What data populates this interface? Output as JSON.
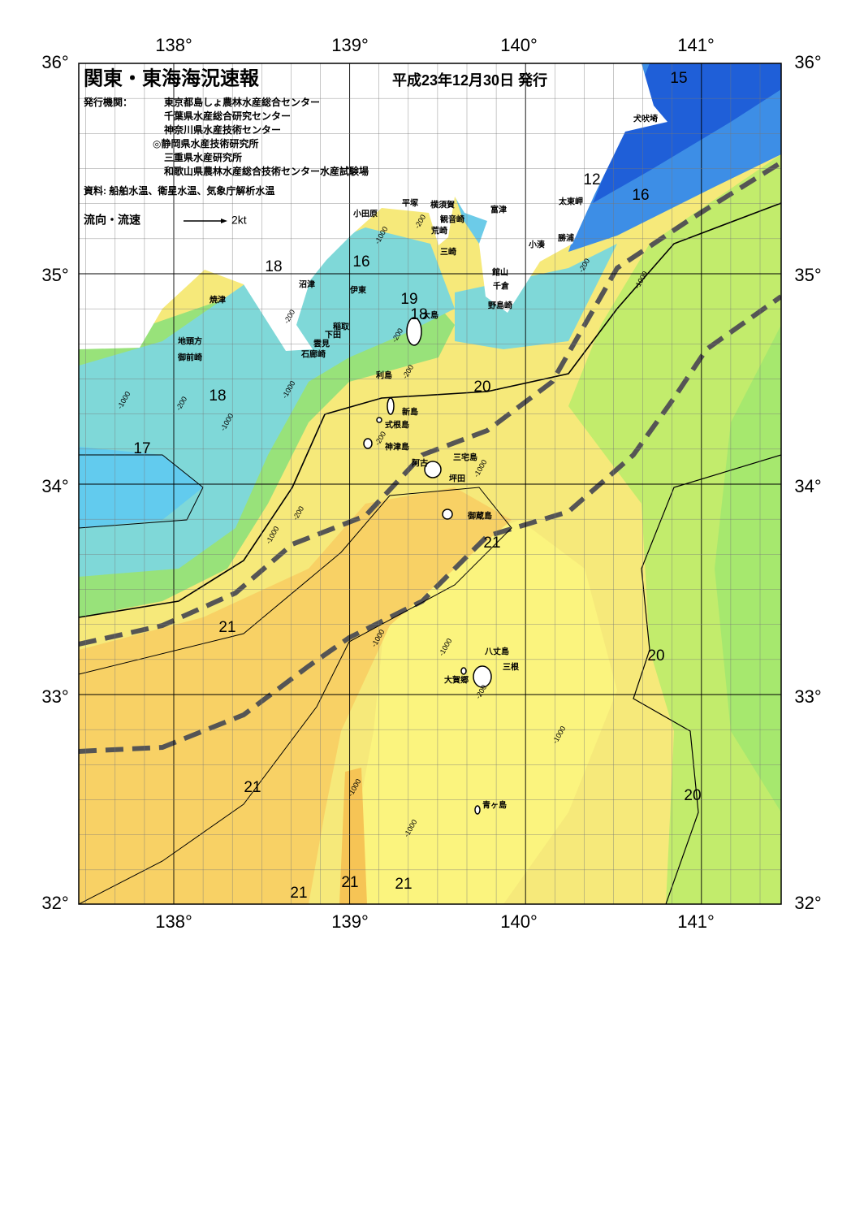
{
  "header": {
    "title": "関東・東海海況速報",
    "date": "平成23年12月30日 発行",
    "issuer_label": "発行機関：",
    "issuers": [
      "東京都島しょ農林水産総合センター",
      "千葉県水産総合研究センター",
      "神奈川県水産技術センター",
      "◎静岡県水産技術研究所",
      "三重県水産研究所",
      "和歌山県農林水産総合技術センター水産試験場"
    ],
    "source": "資料: 船舶水温、衛星水温、気象庁解析水温",
    "legend_label": "流向・流速",
    "legend_scale": "2kt"
  },
  "axes": {
    "lon_labels": [
      "138°",
      "139°",
      "140°",
      "141°"
    ],
    "lat_labels": [
      "36°",
      "35°",
      "34°",
      "33°",
      "32°"
    ]
  },
  "places": [
    "犬吠埼",
    "太東岬",
    "勝浦",
    "小湊",
    "富津",
    "横須賀",
    "観音崎",
    "平塚",
    "小田原",
    "荒崎",
    "三崎",
    "館山",
    "千倉",
    "野島崎",
    "沼津",
    "伊東",
    "焼津",
    "稲取",
    "下田",
    "雲見",
    "石廊崎",
    "地頭方",
    "御前崎",
    "大島",
    "利島",
    "新島",
    "式根島",
    "神津島",
    "三宅島",
    "阿古",
    "坪田",
    "御蔵島",
    "八丈島",
    "三根",
    "大賀郷",
    "青ヶ島"
  ],
  "isotherm_labels": [
    "15",
    "12",
    "16",
    "16",
    "18",
    "19",
    "18",
    "18",
    "17",
    "20",
    "21",
    "21",
    "20",
    "21",
    "20",
    "21",
    "21",
    "21"
  ],
  "depth_labels": [
    "-1000",
    "-200",
    "-200",
    "-1000",
    "-200",
    "-200",
    "-200",
    "-1000",
    "-200",
    "-1000",
    "-1000",
    "-200",
    "-1000",
    "-200",
    "-1000",
    "-1000",
    "-1000",
    "-200",
    "-1000",
    "-1000",
    "-1000"
  ]
}
